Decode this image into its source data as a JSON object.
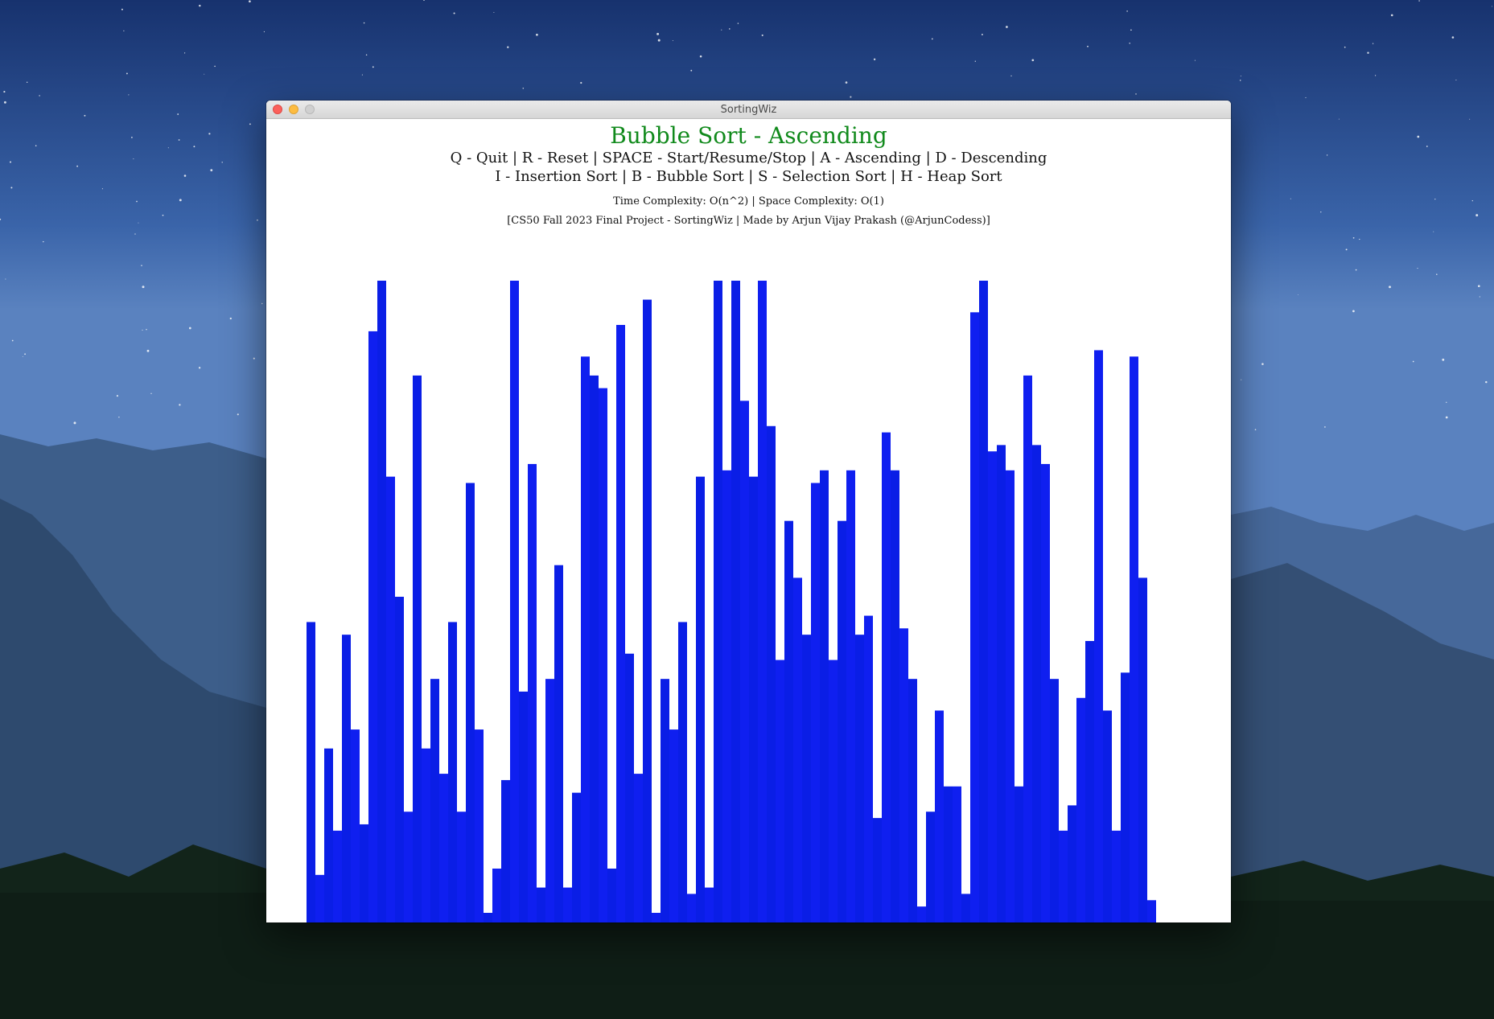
{
  "window": {
    "title": "SortingWiz"
  },
  "header": {
    "heading": "Bubble Sort - Ascending",
    "controls_line1": "Q - Quit | R - Reset | SPACE - Start/Resume/Stop | A - Ascending | D - Descending",
    "controls_line2": "I - Insertion Sort | B - Bubble Sort | S - Selection Sort | H - Heap Sort",
    "complexity": "Time Complexity: O(n^2) | Space Complexity: O(1)",
    "credit": "[CS50 Fall 2023 Final Project - SortingWiz | Made by Arjun Vijay Prakash (@ArjunCodess)]"
  },
  "colors": {
    "bar": "#0a1ee6",
    "bar_alt": "#0f1ff0",
    "heading": "#118a1c"
  },
  "chart_data": {
    "type": "bar",
    "ylim": [
      0,
      100
    ],
    "values": [
      46,
      6,
      26,
      13,
      44,
      29,
      14,
      92,
      100,
      69,
      50,
      16,
      85,
      26,
      37,
      22,
      46,
      16,
      68,
      29,
      0,
      7,
      21,
      100,
      35,
      71,
      4,
      37,
      55,
      4,
      19,
      88,
      85,
      83,
      7,
      93,
      41,
      22,
      97,
      0,
      37,
      29,
      46,
      3,
      69,
      4,
      100,
      70,
      100,
      81,
      69,
      100,
      77,
      40,
      62,
      53,
      44,
      68,
      70,
      40,
      62,
      70,
      44,
      47,
      15,
      76,
      70,
      45,
      37,
      1,
      16,
      32,
      20,
      20,
      3,
      95,
      100,
      73,
      74,
      70,
      20,
      85,
      74,
      71,
      37,
      13,
      17,
      34,
      43,
      89,
      32,
      13,
      38,
      88,
      53,
      2
    ],
    "bar_colors": [
      "b",
      "a",
      "b",
      "a",
      "b",
      "a",
      "b",
      "a",
      "b",
      "a",
      "b",
      "a",
      "b",
      "a",
      "b",
      "a",
      "b",
      "a",
      "b",
      "a",
      "b",
      "a",
      "b",
      "a",
      "b",
      "a",
      "b",
      "a",
      "b",
      "a",
      "b",
      "a",
      "b",
      "a",
      "b",
      "a",
      "b",
      "a",
      "b",
      "a",
      "b",
      "a",
      "b",
      "a",
      "b",
      "a",
      "b",
      "a",
      "b",
      "a",
      "b",
      "a",
      "b",
      "a",
      "b",
      "a",
      "b",
      "a",
      "b",
      "a",
      "b",
      "a",
      "b",
      "a",
      "b",
      "a",
      "b",
      "a",
      "b",
      "a",
      "b",
      "a",
      "b",
      "a",
      "b",
      "a",
      "b",
      "a",
      "b",
      "a",
      "b",
      "a",
      "b",
      "a",
      "b",
      "a",
      "b",
      "a",
      "b",
      "a",
      "b",
      "a",
      "b",
      "a",
      "b",
      "a"
    ]
  }
}
